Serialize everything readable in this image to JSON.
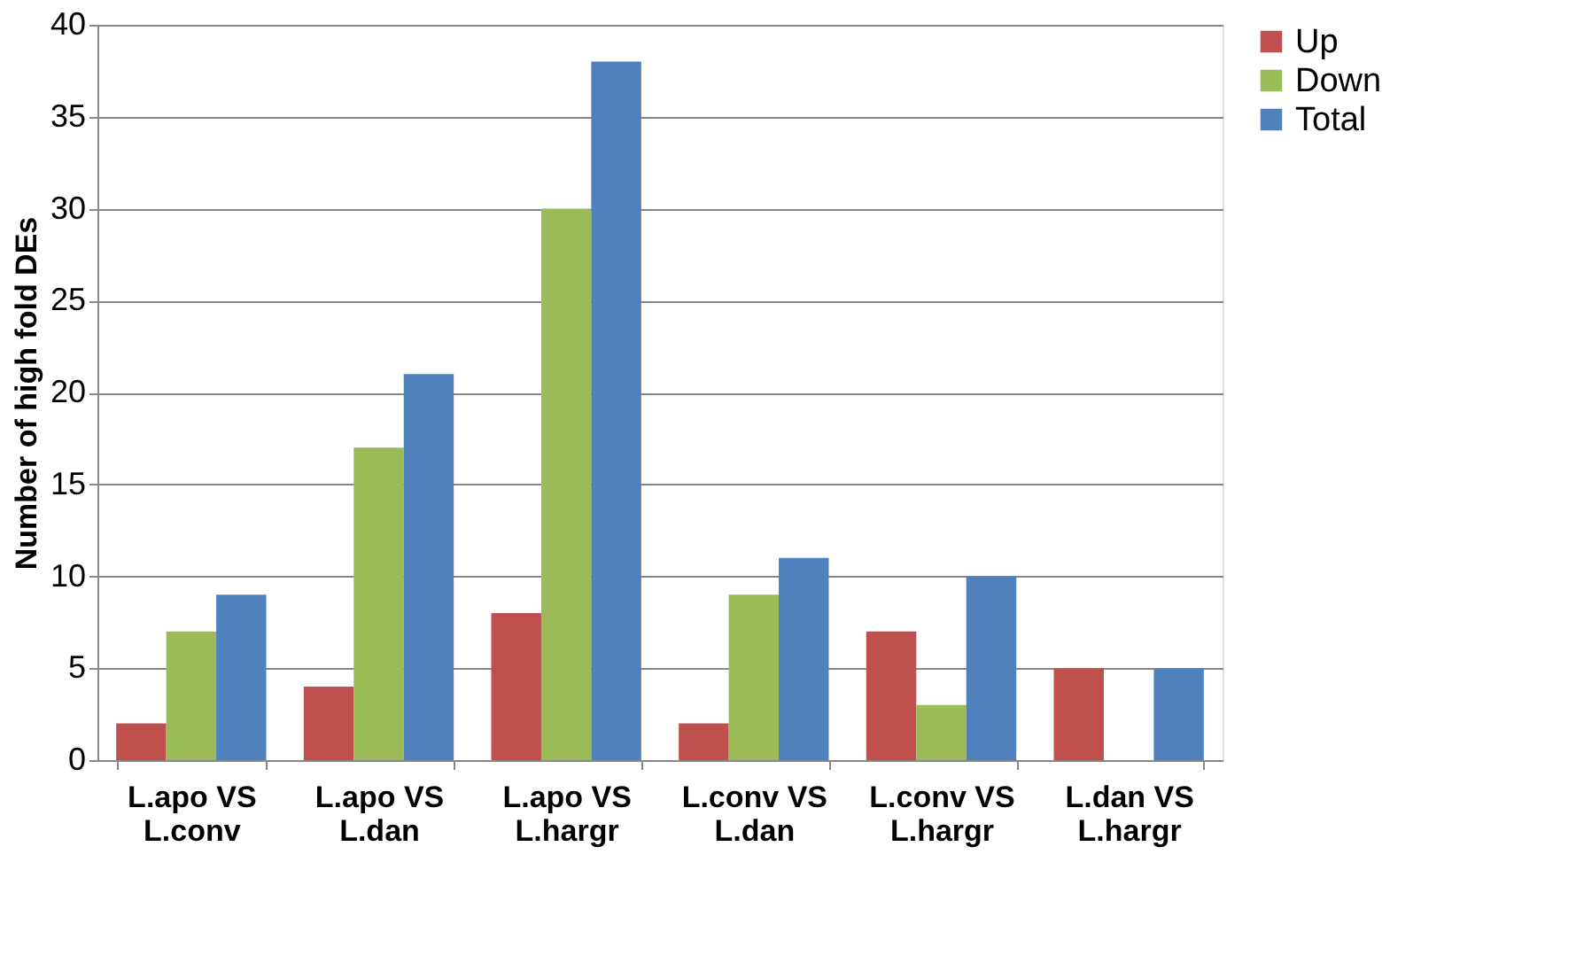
{
  "chart_data": {
    "type": "bar",
    "ylabel": "Number of high fold DEs",
    "categories": [
      "L.apo VS\nL.conv",
      "L.apo VS\nL.dan",
      "L.apo VS\nL.hargr",
      "L.conv VS\nL.dan",
      "L.conv VS\nL.hargr",
      "L.dan VS\nL.hargr"
    ],
    "series": [
      {
        "name": "Up",
        "color": "#c0504d",
        "values": [
          2,
          4,
          8,
          2,
          7,
          5
        ]
      },
      {
        "name": "Down",
        "color": "#9bbb59",
        "values": [
          7,
          17,
          30,
          9,
          3,
          0
        ]
      },
      {
        "name": "Total",
        "color": "#4f81bd",
        "values": [
          9,
          21,
          38,
          11,
          10,
          5
        ]
      }
    ],
    "ylim": [
      0,
      40
    ],
    "yticks": [
      0,
      5,
      10,
      15,
      20,
      25,
      30,
      35,
      40
    ],
    "grid": "y",
    "legend": "right"
  }
}
